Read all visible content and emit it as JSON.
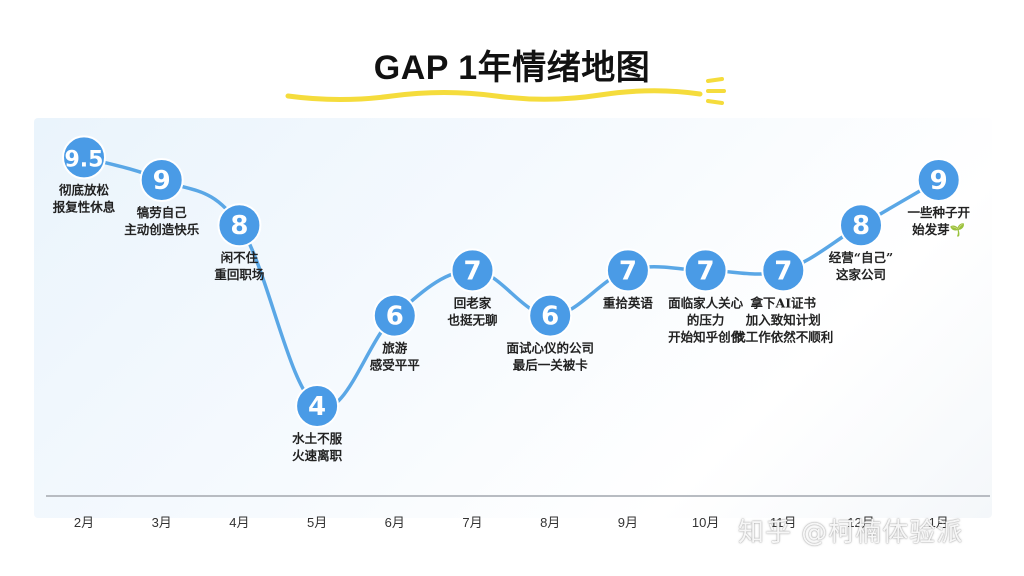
{
  "title": "GAP 1年情绪地图",
  "watermark": "知乎 @柯楠体验派",
  "colors": {
    "line": "#5aa7e6",
    "marker": "#4a9be6",
    "marker_text": "#ffffff",
    "axis": "#b8bcc2",
    "title_underline": "#f5dc3c",
    "note_text": "#222222",
    "tick_text": "#333333"
  },
  "chart_data": {
    "type": "line",
    "title": "GAP 1年情绪地图",
    "categories": [
      "2月",
      "3月",
      "4月",
      "5月",
      "6月",
      "7月",
      "8月",
      "9月",
      "10月",
      "11月",
      "12月",
      "1月"
    ],
    "values": [
      9.5,
      9,
      8,
      4,
      6,
      7,
      6,
      7,
      7,
      7,
      8,
      9
    ],
    "point_labels": [
      "9.5",
      "9",
      "8",
      "4",
      "6",
      "7",
      "6",
      "7",
      "7",
      "7",
      "8",
      "9"
    ],
    "annotations": [
      [
        "彻底放松",
        "报复性休息"
      ],
      [
        "犒劳自己",
        "主动创造快乐"
      ],
      [
        "闲不住",
        "重回职场"
      ],
      [
        "水土不服",
        "火速离职"
      ],
      [
        "旅游",
        "感受平平"
      ],
      [
        "回老家",
        "也挺无聊"
      ],
      [
        "面试心仪的公司",
        "最后一关被卡"
      ],
      [
        "重拾英语"
      ],
      [
        "面临家人关心",
        "的压力",
        "开始知乎创作"
      ],
      [
        "拿下AI证书",
        "加入致知计划",
        "找工作依然不顺利"
      ],
      [
        "经营“自己”",
        "这家公司"
      ],
      [
        "一些种子开",
        "始发芽🌱"
      ]
    ],
    "xlabel": "",
    "ylabel": "",
    "grid": false,
    "legend": "none"
  }
}
